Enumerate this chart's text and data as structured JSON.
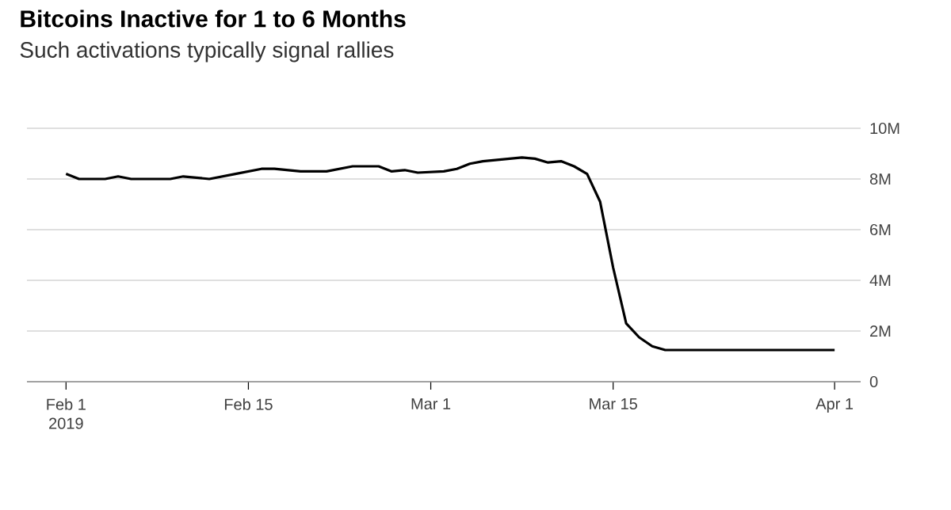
{
  "chart_data": {
    "type": "line",
    "title": "Bitcoins Inactive for 1 to 6 Months",
    "subtitle": "Such activations typically signal rallies",
    "x": [
      "2019-02-01",
      "2019-02-02",
      "2019-02-04",
      "2019-02-05",
      "2019-02-06",
      "2019-02-09",
      "2019-02-10",
      "2019-02-12",
      "2019-02-14",
      "2019-02-16",
      "2019-02-17",
      "2019-02-19",
      "2019-02-21",
      "2019-02-23",
      "2019-02-25",
      "2019-02-26",
      "2019-02-27",
      "2019-02-28",
      "2019-03-02",
      "2019-03-03",
      "2019-03-04",
      "2019-03-05",
      "2019-03-08",
      "2019-03-09",
      "2019-03-10",
      "2019-03-11",
      "2019-03-12",
      "2019-03-13",
      "2019-03-14",
      "2019-03-15",
      "2019-03-16",
      "2019-03-17",
      "2019-03-18",
      "2019-03-19",
      "2019-04-01"
    ],
    "series": [
      {
        "color": "#000000",
        "values": [
          8.2,
          8.0,
          8.0,
          8.1,
          8.0,
          8.0,
          8.1,
          8.0,
          8.2,
          8.4,
          8.4,
          8.3,
          8.3,
          8.5,
          8.5,
          8.3,
          8.35,
          8.25,
          8.3,
          8.4,
          8.6,
          8.7,
          8.85,
          8.8,
          8.65,
          8.7,
          8.5,
          8.2,
          7.1,
          4.5,
          2.3,
          1.75,
          1.4,
          1.25,
          1.25
        ]
      }
    ],
    "xlim": [
      "2019-01-29",
      "2019-04-03"
    ],
    "xticks": [
      {
        "value": "2019-02-01",
        "label": "Feb 1 2019"
      },
      {
        "value": "2019-02-15",
        "label": "Feb 15"
      },
      {
        "value": "2019-03-01",
        "label": "Mar 1"
      },
      {
        "value": "2019-03-15",
        "label": "Mar 15"
      },
      {
        "value": "2019-04-01",
        "label": "Apr 1"
      }
    ],
    "ylim": [
      0,
      10
    ],
    "yticks": [
      0,
      {
        "value": 2,
        "label": "2M"
      },
      {
        "value": 4,
        "label": "4M"
      },
      {
        "value": 6,
        "label": "6M"
      },
      {
        "value": 8,
        "label": "8M"
      },
      {
        "value": 10,
        "label": "10M"
      }
    ],
    "grid": "y",
    "marker": "none",
    "line_style": "solid"
  }
}
